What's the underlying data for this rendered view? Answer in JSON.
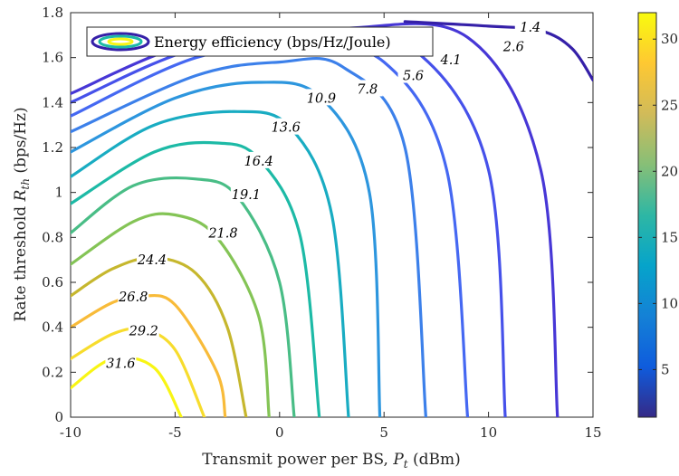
{
  "chart_data": {
    "type": "contour",
    "xlabel": "Transmit power per BS, P_t (dBm)",
    "xlabel_parts": [
      "Transmit power per BS, ",
      "P",
      "t",
      " (dBm)"
    ],
    "ylabel": "Rate threshold R_th (bps/Hz)",
    "ylabel_parts": [
      "Rate threshold ",
      "R",
      "th",
      " (bps/Hz)"
    ],
    "xlim": [
      -10,
      15
    ],
    "ylim": [
      0,
      1.8
    ],
    "xticks": [
      -10,
      -5,
      0,
      5,
      10,
      15
    ],
    "yticks": [
      0,
      0.2,
      0.4,
      0.6,
      0.8,
      1,
      1.2,
      1.4,
      1.6,
      1.8
    ],
    "grid": false,
    "legend": {
      "label": "Energy efficiency (bps/Hz/Joule)",
      "placement": "top-left"
    },
    "colorbar": {
      "range": [
        1.4,
        32
      ],
      "ticks": [
        5,
        10,
        15,
        20,
        25,
        30
      ],
      "colormap": "parula"
    },
    "contours": [
      {
        "level": "31.6",
        "value": 31.6,
        "color": "#f8f514",
        "points": [
          [
            -10,
            0.13
          ],
          [
            -8,
            0.26
          ],
          [
            -6,
            0.22
          ],
          [
            -4.7,
            0
          ]
        ],
        "label_at": [
          -7.6,
          0.24
        ]
      },
      {
        "level": "29.2",
        "value": 29.2,
        "color": "#f7dc2d",
        "points": [
          [
            -10,
            0.26
          ],
          [
            -8,
            0.37
          ],
          [
            -6.5,
            0.39
          ],
          [
            -5,
            0.3
          ],
          [
            -3.6,
            0
          ]
        ],
        "label_at": [
          -6.5,
          0.385
        ]
      },
      {
        "level": "26.8",
        "value": 26.8,
        "color": "#f8bb39",
        "points": [
          [
            -10,
            0.4
          ],
          [
            -8,
            0.51
          ],
          [
            -6.5,
            0.54
          ],
          [
            -5,
            0.5
          ],
          [
            -3,
            0.2
          ],
          [
            -2.6,
            0
          ]
        ],
        "label_at": [
          -7.0,
          0.535
        ]
      },
      {
        "level": "24.4",
        "value": 24.4,
        "color": "#c6b72e",
        "points": [
          [
            -10,
            0.54
          ],
          [
            -8,
            0.66
          ],
          [
            -6,
            0.71
          ],
          [
            -4,
            0.64
          ],
          [
            -2.5,
            0.4
          ],
          [
            -1.6,
            0
          ]
        ],
        "label_at": [
          -6.1,
          0.7
        ]
      },
      {
        "level": "21.8",
        "value": 21.8,
        "color": "#84c456",
        "points": [
          [
            -10,
            0.68
          ],
          [
            -7,
            0.87
          ],
          [
            -5,
            0.9
          ],
          [
            -3,
            0.8
          ],
          [
            -1,
            0.45
          ],
          [
            -0.5,
            0
          ]
        ],
        "label_at": [
          -2.7,
          0.82
        ]
      },
      {
        "level": "19.1",
        "value": 19.1,
        "color": "#49bd86",
        "points": [
          [
            -10,
            0.82
          ],
          [
            -7,
            1.03
          ],
          [
            -4,
            1.06
          ],
          [
            -2,
            0.98
          ],
          [
            0,
            0.6
          ],
          [
            0.7,
            0
          ]
        ],
        "label_at": [
          -1.6,
          0.99
        ]
      },
      {
        "level": "16.4",
        "value": 16.4,
        "color": "#1dbaa6",
        "points": [
          [
            -10,
            0.95
          ],
          [
            -6,
            1.18
          ],
          [
            -3,
            1.22
          ],
          [
            -1,
            1.15
          ],
          [
            1,
            0.8
          ],
          [
            1.9,
            0
          ]
        ],
        "label_at": [
          -1.0,
          1.14
        ]
      },
      {
        "level": "13.6",
        "value": 13.6,
        "color": "#19acc2",
        "points": [
          [
            -10,
            1.07
          ],
          [
            -6,
            1.3
          ],
          [
            -2,
            1.36
          ],
          [
            0.5,
            1.29
          ],
          [
            2.5,
            0.9
          ],
          [
            3.3,
            0
          ]
        ],
        "label_at": [
          0.3,
          1.29
        ]
      },
      {
        "level": "10.9",
        "value": 10.9,
        "color": "#2d96de",
        "points": [
          [
            -10,
            1.18
          ],
          [
            -5,
            1.42
          ],
          [
            -1,
            1.49
          ],
          [
            2,
            1.42
          ],
          [
            4.3,
            1.0
          ],
          [
            4.8,
            0
          ]
        ],
        "label_at": [
          2.0,
          1.42
        ]
      },
      {
        "level": "7.8",
        "value": 7.8,
        "color": "#3c80ea",
        "points": [
          [
            -10,
            1.27
          ],
          [
            -4,
            1.52
          ],
          [
            0,
            1.58
          ],
          [
            3,
            1.56
          ],
          [
            6,
            1.2
          ],
          [
            7,
            0
          ]
        ],
        "label_at": [
          4.2,
          1.46
        ]
      },
      {
        "level": "5.6",
        "value": 5.6,
        "color": "#4568f2",
        "points": [
          [
            -10,
            1.34
          ],
          [
            -4,
            1.6
          ],
          [
            1,
            1.65
          ],
          [
            5,
            1.58
          ],
          [
            8,
            1.1
          ],
          [
            9,
            0
          ]
        ],
        "label_at": [
          6.4,
          1.52
        ]
      },
      {
        "level": "4.1",
        "value": 4.1,
        "color": "#4651ea",
        "points": [
          [
            -10,
            1.4
          ],
          [
            -4,
            1.64
          ],
          [
            2,
            1.69
          ],
          [
            6.5,
            1.63
          ],
          [
            10,
            1.1
          ],
          [
            10.8,
            0
          ]
        ],
        "label_at": [
          8.2,
          1.59
        ]
      },
      {
        "level": "2.6",
        "value": 2.6,
        "color": "#4737d6",
        "points": [
          [
            -10,
            1.44
          ],
          [
            -4,
            1.67
          ],
          [
            3,
            1.73
          ],
          [
            9,
            1.69
          ],
          [
            12.5,
            1.1
          ],
          [
            13.3,
            0
          ]
        ],
        "label_at": [
          11.2,
          1.65
        ]
      },
      {
        "level": "1.4",
        "value": 1.4,
        "color": "#3520a8",
        "points": [
          [
            6,
            1.76
          ],
          [
            10,
            1.74
          ],
          [
            12.5,
            1.72
          ],
          [
            14,
            1.64
          ],
          [
            15,
            1.5
          ]
        ],
        "label_at": [
          12.0,
          1.735
        ]
      }
    ]
  }
}
